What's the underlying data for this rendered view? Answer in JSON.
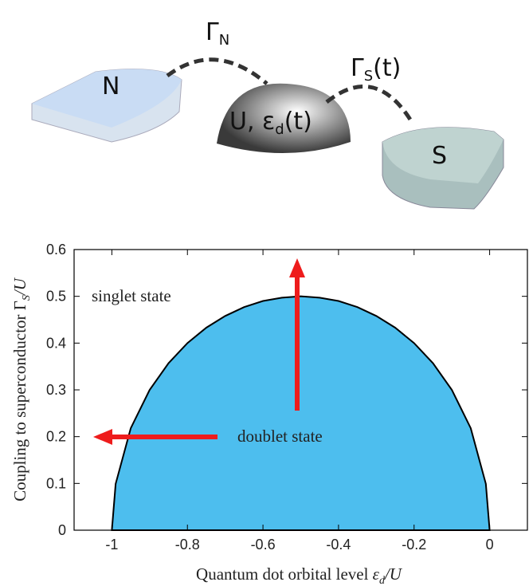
{
  "diagram": {
    "lead_n": "N",
    "dot_parts": [
      "U, ε",
      "d",
      "(t)"
    ],
    "lead_s": "S",
    "gamma_n_parts": [
      "Γ",
      "N"
    ],
    "gamma_s_parts": [
      "Γ",
      "S",
      "(t)"
    ]
  },
  "chart_data": {
    "type": "area",
    "xlabel_parts": [
      "Quantum dot orbital level ",
      "ε",
      "d",
      "/U"
    ],
    "ylabel_parts": [
      "Coupling to superconductor Γ",
      "S",
      "/U"
    ],
    "annotations": [
      "singlet state",
      "doublet state"
    ],
    "x": [
      -1,
      -0.99,
      -0.95,
      -0.9,
      -0.85,
      -0.8,
      -0.75,
      -0.7,
      -0.65,
      -0.6,
      -0.55,
      -0.5,
      -0.45,
      -0.4,
      -0.35,
      -0.3,
      -0.25,
      -0.2,
      -0.15,
      -0.1,
      -0.05,
      -0.01,
      0
    ],
    "values": [
      0,
      0.099,
      0.218,
      0.3,
      0.357,
      0.4,
      0.433,
      0.458,
      0.477,
      0.49,
      0.497,
      0.5,
      0.497,
      0.49,
      0.477,
      0.458,
      0.433,
      0.4,
      0.357,
      0.3,
      0.218,
      0.099,
      0
    ],
    "color": "#4dbeee",
    "xlim": [
      -1.1,
      0.1
    ],
    "xticks": [
      -1,
      -0.8,
      -0.6,
      -0.4,
      -0.2,
      0
    ],
    "ylim": [
      0,
      0.6
    ],
    "yticks": [
      0,
      0.1,
      0.2,
      0.3,
      0.4,
      0.5,
      0.6
    ]
  }
}
